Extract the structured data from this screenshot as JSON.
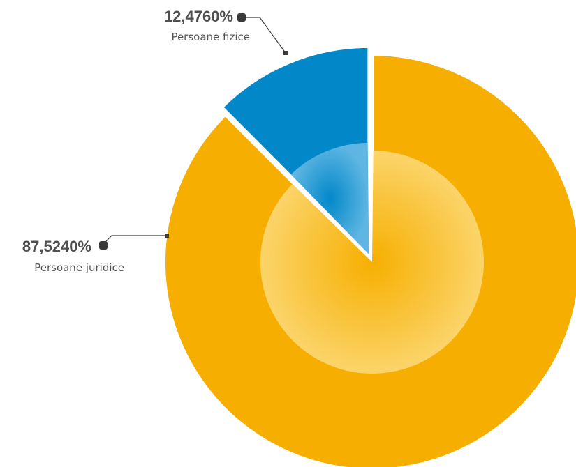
{
  "chart_data": {
    "type": "pie",
    "slices": [
      {
        "label": "Persoane fizice",
        "value": 12.476,
        "value_label": "12,4760%",
        "color": "#0288c9"
      },
      {
        "label": "Persoane juridice",
        "value": 87.524,
        "value_label": "87,5240%",
        "color": "#f6af00"
      }
    ],
    "exploded_slice": "Persoane fizice",
    "legend": "none",
    "title": ""
  }
}
